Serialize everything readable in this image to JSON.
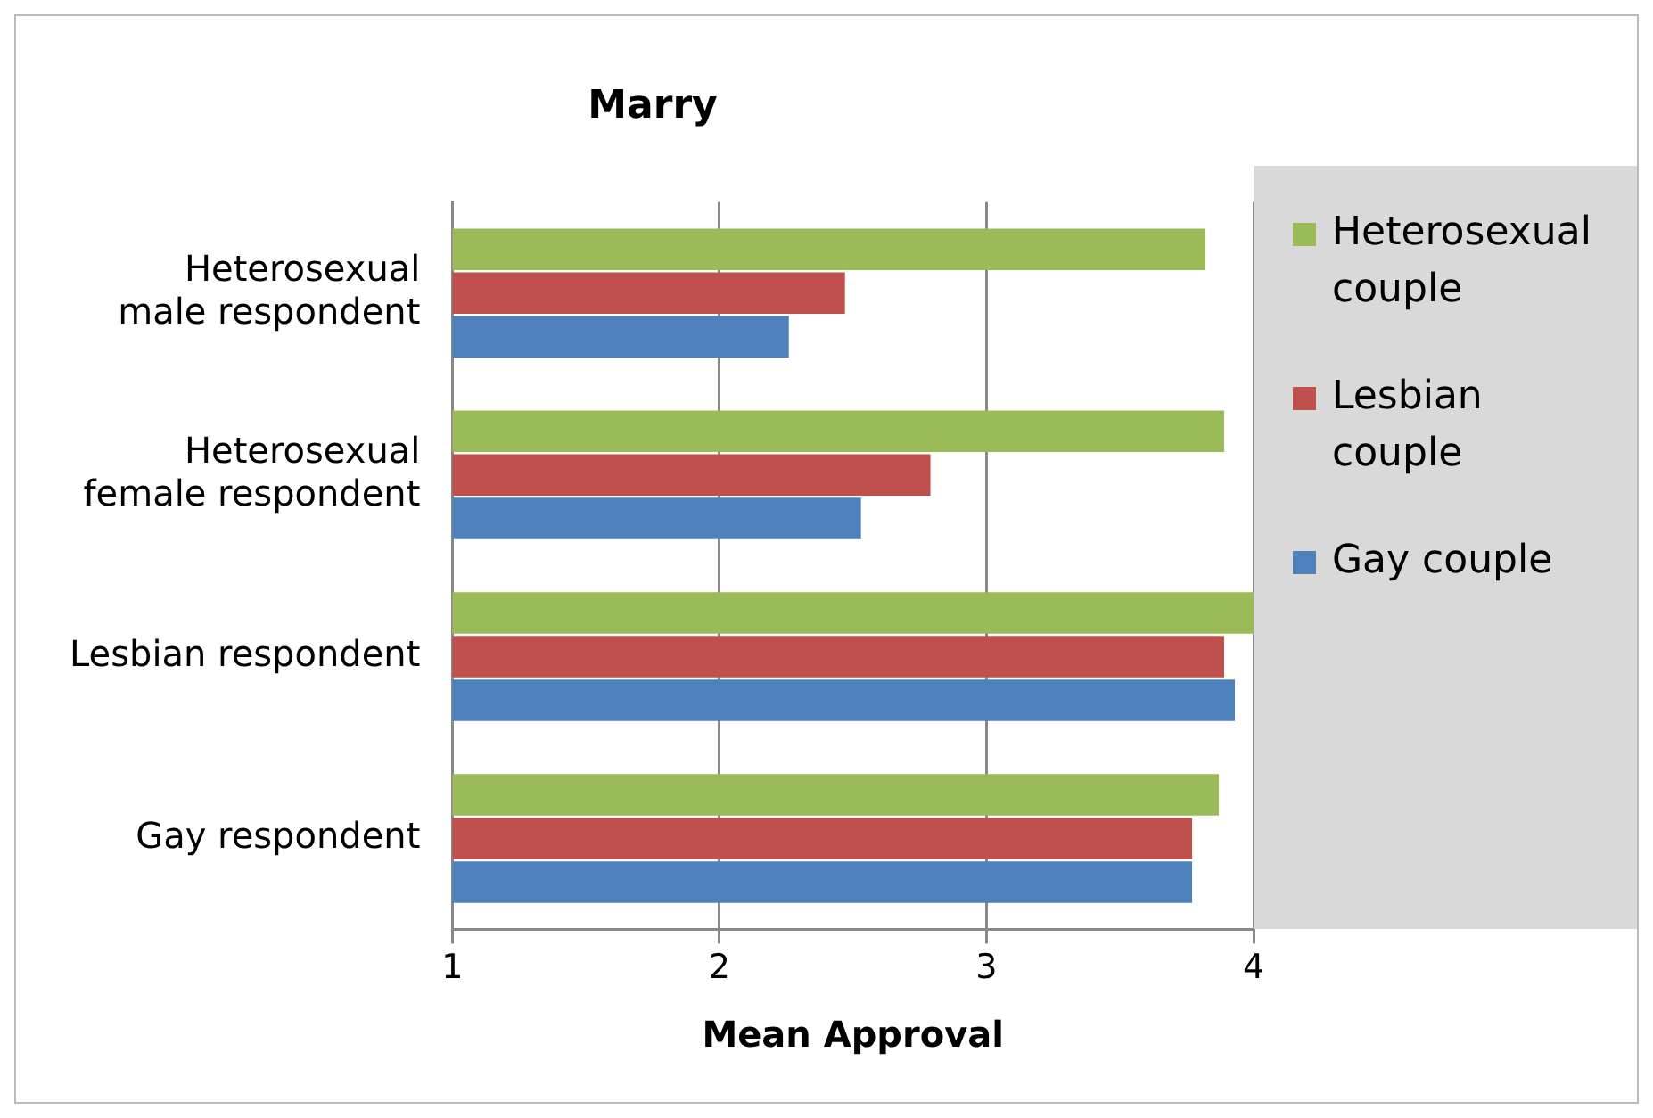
{
  "chart_data": {
    "type": "bar",
    "orientation": "horizontal",
    "title": "Marry",
    "xlabel": "Mean Approval",
    "categories": [
      "Heterosexual male respondent",
      "Heterosexual female respondent",
      "Lesbian respondent",
      "Gay respondent"
    ],
    "series": [
      {
        "name": "Heterosexual couple",
        "color": "#9bbb59",
        "values": [
          3.82,
          3.89,
          4.0,
          3.87
        ]
      },
      {
        "name": "Lesbian couple",
        "color": "#c0504d",
        "values": [
          2.47,
          2.79,
          3.89,
          3.77
        ]
      },
      {
        "name": "Gay couple",
        "color": "#4f81bd",
        "values": [
          2.26,
          2.53,
          3.93,
          3.77
        ]
      }
    ],
    "xlim": [
      1,
      4
    ],
    "xticks": [
      1,
      2,
      3,
      4
    ],
    "grid": "x",
    "legend": "right"
  }
}
